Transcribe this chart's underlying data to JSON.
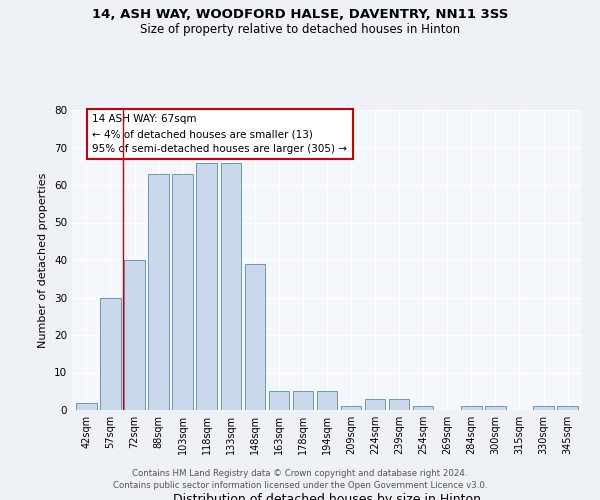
{
  "title1": "14, ASH WAY, WOODFORD HALSE, DAVENTRY, NN11 3SS",
  "title2": "Size of property relative to detached houses in Hinton",
  "xlabel": "Distribution of detached houses by size in Hinton",
  "ylabel": "Number of detached properties",
  "footnote1": "Contains HM Land Registry data © Crown copyright and database right 2024.",
  "footnote2": "Contains public sector information licensed under the Open Government Licence v3.0.",
  "categories": [
    "42sqm",
    "57sqm",
    "72sqm",
    "88sqm",
    "103sqm",
    "118sqm",
    "133sqm",
    "148sqm",
    "163sqm",
    "178sqm",
    "194sqm",
    "209sqm",
    "224sqm",
    "239sqm",
    "254sqm",
    "269sqm",
    "284sqm",
    "300sqm",
    "315sqm",
    "330sqm",
    "345sqm"
  ],
  "values": [
    2,
    30,
    40,
    63,
    63,
    66,
    66,
    39,
    5,
    5,
    5,
    1,
    3,
    3,
    1,
    0,
    1,
    1,
    0,
    1,
    1
  ],
  "bar_color": "#c9d9eb",
  "bar_edge_color": "#5a8ab8",
  "vline_x": 1.5,
  "vline_color": "#cc0000",
  "annotation_text1": "14 ASH WAY: 67sqm",
  "annotation_text2": "← 4% of detached houses are smaller (13)",
  "annotation_text3": "95% of semi-detached houses are larger (305) →",
  "annotation_box_color": "#cc0000",
  "ylim": [
    0,
    80
  ],
  "yticks": [
    0,
    10,
    20,
    30,
    40,
    50,
    60,
    70,
    80
  ],
  "background_color": "#eef2f7",
  "plot_bg_color": "#f4f7fb",
  "grid_color": "#ffffff"
}
